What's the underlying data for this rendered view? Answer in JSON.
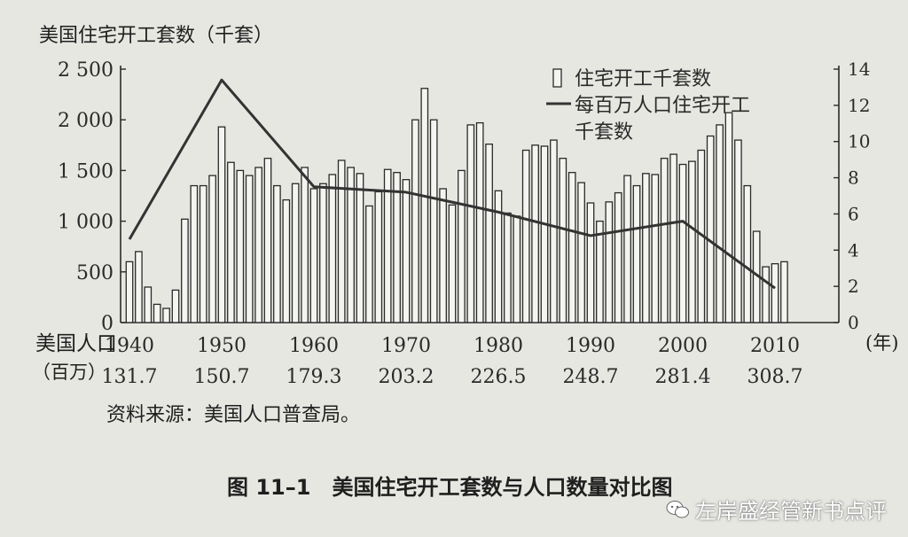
{
  "chart_data": {
    "type": "bar",
    "y_left_label": "美国住宅开工套数（千套）",
    "y_left_ticks": [
      "0",
      "500",
      "1 000",
      "1 500",
      "2 000",
      "2 500"
    ],
    "y_left_lim": [
      0,
      2500
    ],
    "y_right_ticks": [
      "0",
      "2",
      "4",
      "6",
      "8",
      "10",
      "12",
      "14"
    ],
    "y_right_lim": [
      0,
      14
    ],
    "x_start": 1940,
    "x_end": 2011,
    "x_ticks": [
      "1940",
      "1950",
      "1960",
      "1970",
      "1980",
      "1990",
      "2000",
      "2010"
    ],
    "x_unit": "(年)",
    "population_label_line1": "美国人口",
    "population_label_line2": "（百万）",
    "population_values": [
      "131.7",
      "150.7",
      "179.3",
      "203.2",
      "226.5",
      "248.7",
      "281.4",
      "308.7"
    ],
    "legend": {
      "bar_label": "住宅开工千套数",
      "line_label_line1": "每百万人口住宅开工",
      "line_label_line2": "千套数",
      "position": "top-right"
    },
    "series": [
      {
        "name": "住宅开工千套数",
        "type": "bar",
        "axis": "left",
        "x": [
          1940,
          1941,
          1942,
          1943,
          1944,
          1945,
          1946,
          1947,
          1948,
          1949,
          1950,
          1951,
          1952,
          1953,
          1954,
          1955,
          1956,
          1957,
          1958,
          1959,
          1960,
          1961,
          1962,
          1963,
          1964,
          1965,
          1966,
          1967,
          1968,
          1969,
          1970,
          1971,
          1972,
          1973,
          1974,
          1975,
          1976,
          1977,
          1978,
          1979,
          1980,
          1981,
          1982,
          1983,
          1984,
          1985,
          1986,
          1987,
          1988,
          1989,
          1990,
          1991,
          1992,
          1993,
          1994,
          1995,
          1996,
          1997,
          1998,
          1999,
          2000,
          2001,
          2002,
          2003,
          2004,
          2005,
          2006,
          2007,
          2008,
          2009,
          2010,
          2011
        ],
        "values": [
          600,
          700,
          350,
          180,
          140,
          320,
          1020,
          1350,
          1350,
          1450,
          1930,
          1580,
          1500,
          1450,
          1530,
          1620,
          1350,
          1210,
          1370,
          1530,
          1320,
          1370,
          1460,
          1600,
          1530,
          1470,
          1150,
          1290,
          1510,
          1480,
          1410,
          2000,
          2310,
          2000,
          1320,
          1160,
          1500,
          1950,
          1970,
          1760,
          1300,
          1080,
          1050,
          1700,
          1750,
          1740,
          1800,
          1620,
          1480,
          1380,
          1180,
          1000,
          1190,
          1280,
          1450,
          1350,
          1470,
          1460,
          1620,
          1660,
          1560,
          1590,
          1700,
          1840,
          1950,
          2070,
          1800,
          1350,
          900,
          550,
          580,
          600
        ]
      },
      {
        "name": "每百万人口住宅开工千套数",
        "type": "line",
        "axis": "right",
        "x": [
          1940,
          1950,
          1960,
          1970,
          1980,
          1990,
          2000,
          2010
        ],
        "values": [
          4.6,
          13.4,
          7.5,
          7.2,
          6.1,
          4.8,
          5.6,
          1.9
        ]
      }
    ]
  },
  "source_note": "资料来源：美国人口普查局。",
  "caption": "图 11–1　美国住宅开工套数与人口数量对比图",
  "watermark": "左岸盛经管新书点评"
}
